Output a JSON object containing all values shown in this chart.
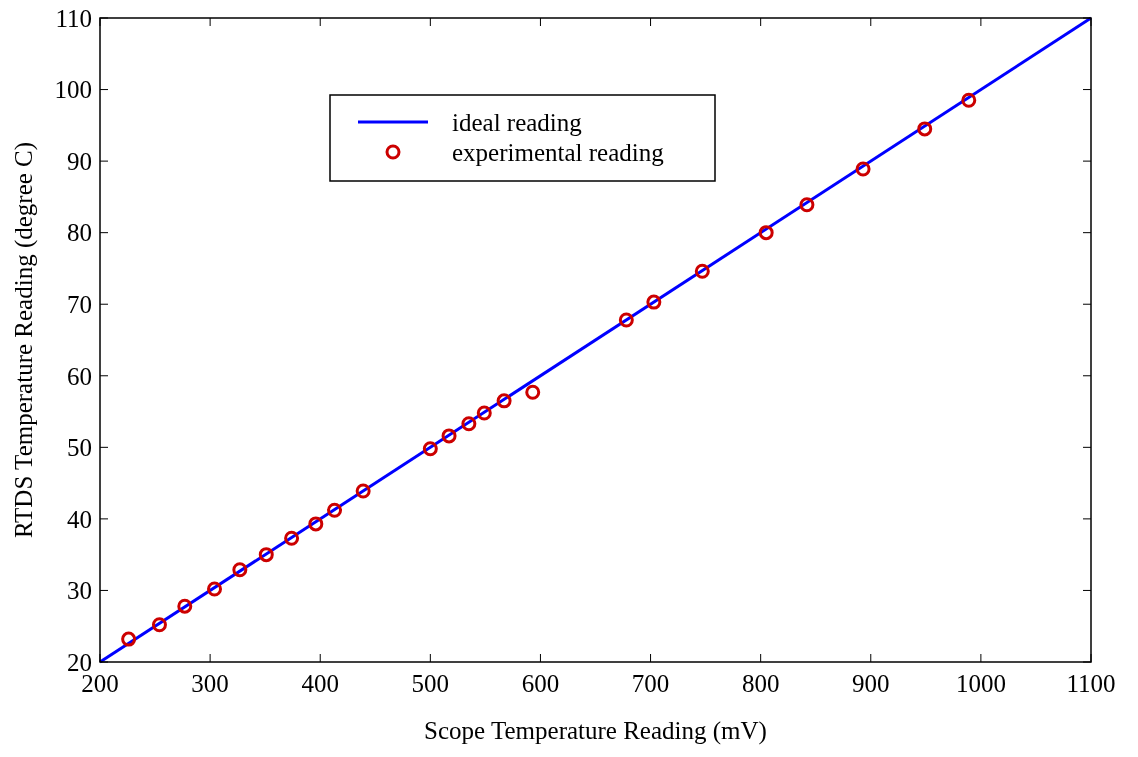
{
  "chart_data": {
    "type": "line",
    "xlabel": "Scope Temperature Reading  (mV)",
    "ylabel": "RTDS Temperature Reading  (degree C)",
    "xlim": [
      200,
      1100
    ],
    "xticks": [
      200,
      300,
      400,
      500,
      600,
      700,
      800,
      900,
      1000,
      1100
    ],
    "ylim": [
      20,
      110
    ],
    "yticks": [
      20,
      30,
      40,
      50,
      60,
      70,
      80,
      90,
      100,
      110
    ],
    "grid": false,
    "legend": "top",
    "series": [
      {
        "name": "ideal reading",
        "type": "line",
        "color": "#0000ff",
        "marker": "none",
        "line_style": "solid",
        "x": [
          200,
          1100
        ],
        "values": [
          20,
          110
        ]
      },
      {
        "name": "experimental reading",
        "type": "scatter",
        "color": "#cc0000",
        "marker": "circle",
        "x": [
          226,
          254,
          277,
          304,
          327,
          351,
          374,
          396,
          413,
          439,
          500,
          517,
          535,
          549,
          567,
          593,
          678,
          703,
          747,
          805,
          842,
          893,
          949,
          989
        ],
        "values": [
          23.2,
          25.2,
          27.8,
          30.2,
          32.9,
          35.0,
          37.3,
          39.3,
          41.2,
          43.9,
          49.8,
          51.6,
          53.3,
          54.8,
          56.5,
          57.7,
          67.8,
          70.3,
          74.6,
          80.0,
          83.9,
          88.9,
          94.5,
          98.5
        ]
      }
    ]
  }
}
